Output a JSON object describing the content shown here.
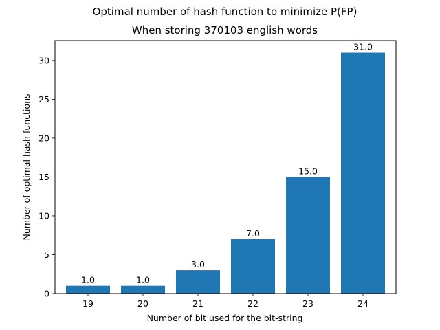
{
  "chart_data": {
    "type": "bar",
    "suptitle": "Optimal number of hash function to minimize P(FP)",
    "title": "When storing 370103 english words",
    "xlabel": "Number of bit used for the bit-string",
    "ylabel": "Number of optimal hash functions",
    "categories": [
      "19",
      "20",
      "21",
      "22",
      "23",
      "24"
    ],
    "values": [
      1.0,
      1.0,
      3.0,
      7.0,
      15.0,
      31.0
    ],
    "data_labels": [
      "1.0",
      "1.0",
      "3.0",
      "7.0",
      "15.0",
      "31.0"
    ],
    "ylim": [
      0,
      32.55
    ],
    "yticks": [
      0,
      5,
      10,
      15,
      20,
      25,
      30
    ],
    "ytick_labels": [
      "0",
      "5",
      "10",
      "15",
      "20",
      "25",
      "30"
    ],
    "bar_color": "#1f77b4",
    "grid": false,
    "legend": "none"
  }
}
